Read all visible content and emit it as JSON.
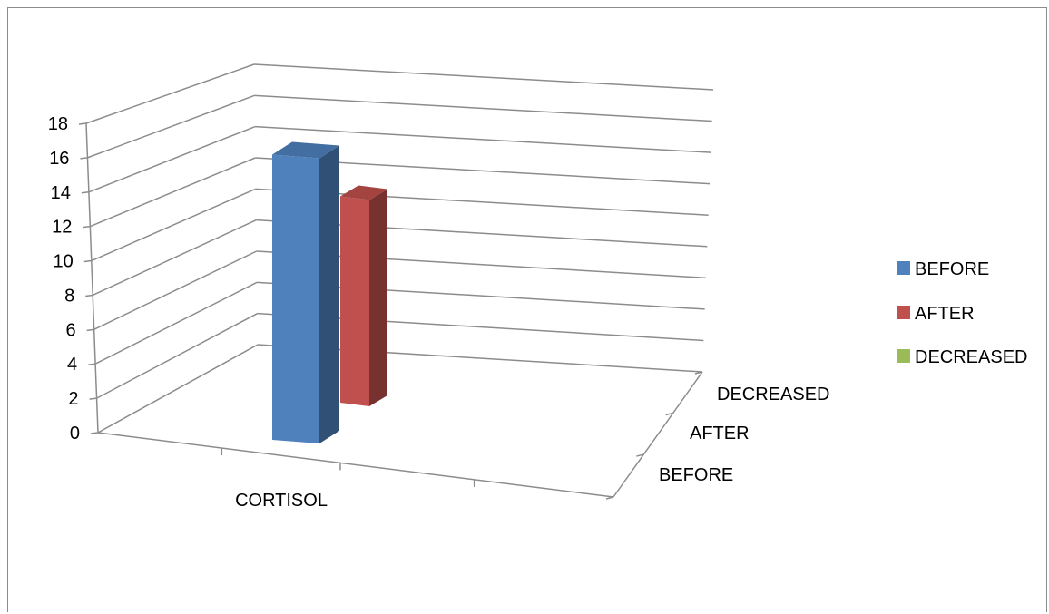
{
  "chart_data": {
    "type": "bar",
    "categories": [
      "CORTISOL"
    ],
    "depth_labels": [
      "BEFORE",
      "AFTER",
      "DECREASED"
    ],
    "series": [
      {
        "name": "BEFORE",
        "values": [
          16.2
        ],
        "color": "#4F81BD"
      },
      {
        "name": "AFTER",
        "values": [
          13.1
        ],
        "color": "#C0504D"
      },
      {
        "name": "DECREASED",
        "values": [
          0
        ],
        "color": "#9BBB59"
      }
    ],
    "y_ticks": [
      "0",
      "2",
      "4",
      "6",
      "8",
      "10",
      "12",
      "14",
      "16",
      "18"
    ],
    "ylim": [
      0,
      18
    ],
    "grid": true,
    "legend": "right",
    "style": "3d-column"
  }
}
